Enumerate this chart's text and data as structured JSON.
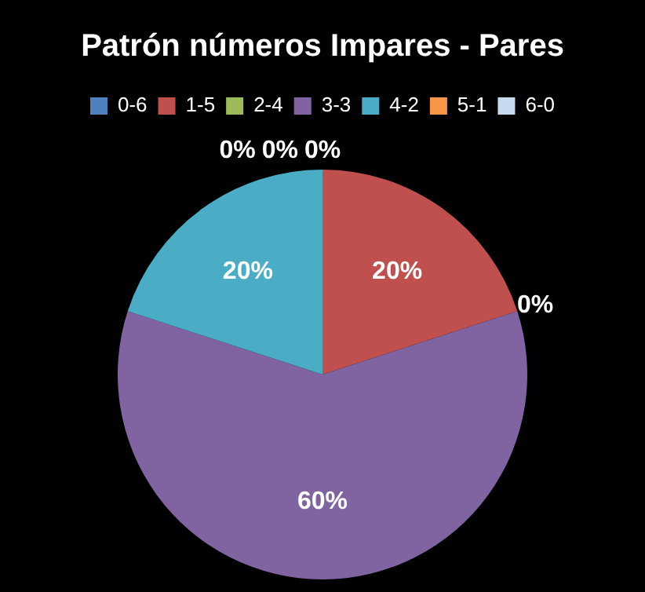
{
  "chart_data": {
    "type": "pie",
    "title": "Patrón números Impares - Pares",
    "categories": [
      "0-6",
      "1-5",
      "2-4",
      "3-3",
      "4-2",
      "5-1",
      "6-0"
    ],
    "values": [
      0,
      20,
      0,
      60,
      20,
      0,
      0
    ],
    "colors": [
      "#4f81bd",
      "#c0504d",
      "#9bbb59",
      "#8064a2",
      "#4bacc6",
      "#f79646",
      "#c6d9f1"
    ],
    "value_labels": [
      "0%",
      "20%",
      "0%",
      "60%",
      "20%",
      "0%",
      "0%"
    ],
    "legend": "top"
  }
}
